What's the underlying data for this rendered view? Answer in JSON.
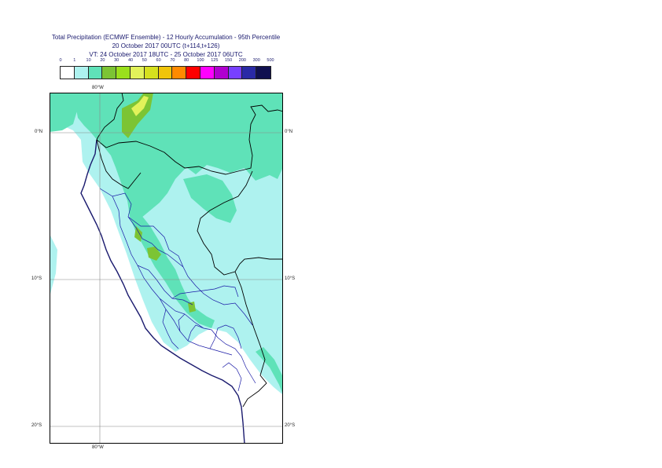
{
  "header": {
    "title_line1": "Total Precipitation (ECMWF Ensemble) - 12 Hourly Accumulation - 95th Percentile",
    "title_line2": "20 October 2017 00UTC (t+114,t+126)",
    "title_line3": "VT: 24 October 2017 18UTC - 25 October 2017 06UTC"
  },
  "legend": {
    "labels": [
      "0",
      "1",
      "10",
      "20",
      "30",
      "40",
      "50",
      "60",
      "70",
      "80",
      "100",
      "125",
      "150",
      "200",
      "300",
      "500"
    ],
    "colors": [
      "#ffffff",
      "#aef2ef",
      "#5fe2b8",
      "#7cc434",
      "#9ae01c",
      "#e2f25a",
      "#d6e01e",
      "#f0c40a",
      "#ff8a00",
      "#ff0000",
      "#ff00ff",
      "#b000d0",
      "#7840ff",
      "#2a2aa6",
      "#101050"
    ]
  },
  "map": {
    "lon_label_top": "80°W",
    "lon_label_bottom": "80°W",
    "lat_labels": [
      {
        "left": "0°N",
        "right": "0°N"
      },
      {
        "left": "10°S",
        "right": "10°S"
      },
      {
        "left": "20°S",
        "right": "20°S"
      }
    ]
  }
}
